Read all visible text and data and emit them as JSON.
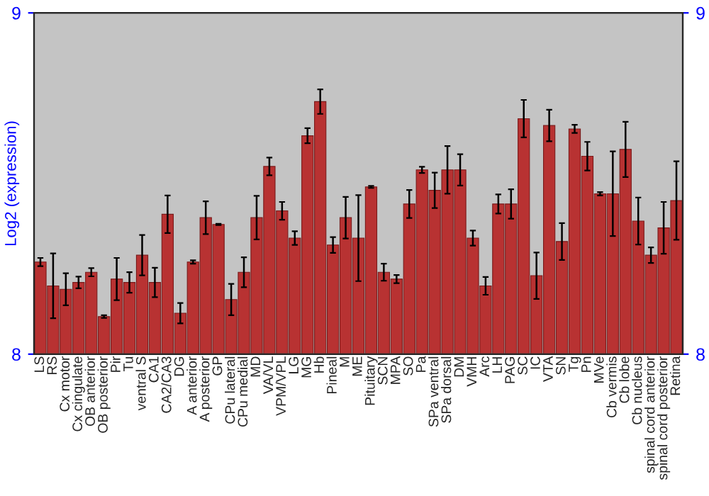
{
  "chart_data": {
    "type": "bar",
    "ylabel": "Log2 (expression)",
    "categories": [
      "LS",
      "RS",
      "Cx motor",
      "Cx cingulate",
      "OB anterior",
      "OB posterior",
      "Pir",
      "Tu",
      "ventral S",
      "CA1",
      "CA2/CA3",
      "DG",
      "A anterior",
      "A posterior",
      "GP",
      "CPu lateral",
      "CPu medial",
      "MD",
      "VA/VL",
      "VPM/VPL",
      "LG",
      "MG",
      "Hb",
      "Pineal",
      "M",
      "ME",
      "Pituitary",
      "SCN",
      "MPA",
      "SO",
      "Pa",
      "SPa ventral",
      "SPa dorsal",
      "DM",
      "VMH",
      "Arc",
      "LH",
      "PAG",
      "SC",
      "IC",
      "VTA",
      "SN",
      "Tg",
      "Pn",
      "MVe",
      "Cb vermis",
      "Cb lobe",
      "Cb nucleus",
      "spinal cord anterior",
      "spinal cord posterior",
      "Retina"
    ],
    "values": [
      8.27,
      8.2,
      8.19,
      8.21,
      8.24,
      8.11,
      8.22,
      8.21,
      8.29,
      8.21,
      8.41,
      8.12,
      8.27,
      8.4,
      8.38,
      8.16,
      8.24,
      8.4,
      8.55,
      8.42,
      8.34,
      8.64,
      8.74,
      8.32,
      8.4,
      8.34,
      8.49,
      8.24,
      8.22,
      8.44,
      8.54,
      8.48,
      8.54,
      8.54,
      8.34,
      8.2,
      8.44,
      8.44,
      8.69,
      8.23,
      8.67,
      8.33,
      8.66,
      8.58,
      8.47,
      8.47,
      8.6,
      8.39,
      8.29,
      8.37,
      8.45
    ],
    "errors": [
      0.012,
      0.095,
      0.047,
      0.017,
      0.012,
      0.004,
      0.062,
      0.03,
      0.059,
      0.043,
      0.055,
      0.03,
      0.005,
      0.048,
      0.002,
      0.046,
      0.044,
      0.064,
      0.026,
      0.026,
      0.02,
      0.022,
      0.036,
      0.023,
      0.061,
      0.126,
      0.003,
      0.025,
      0.012,
      0.041,
      0.009,
      0.052,
      0.07,
      0.046,
      0.022,
      0.026,
      0.028,
      0.043,
      0.055,
      0.068,
      0.046,
      0.054,
      0.012,
      0.042,
      0.005,
      0.124,
      0.081,
      0.069,
      0.023,
      0.076,
      0.115
    ],
    "color": "#b83232",
    "ylim": [
      8,
      9
    ],
    "yticks": [
      8,
      9
    ],
    "y2lim": [
      8,
      9
    ],
    "y2ticks": [
      8,
      9
    ],
    "grid": false,
    "legend": false
  }
}
